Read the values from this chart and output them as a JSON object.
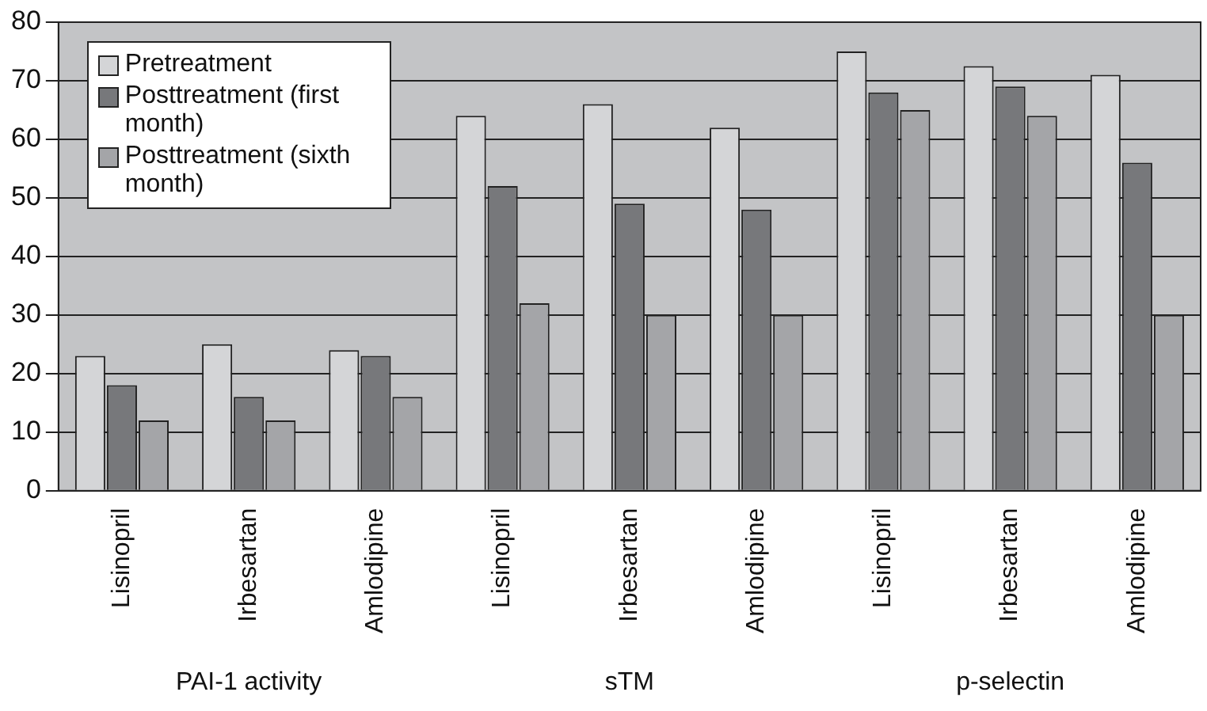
{
  "chart_data": {
    "type": "bar",
    "categories": [
      "Lisinopril",
      "Irbesartan",
      "Amlodipine",
      "Lisinopril",
      "Irbesartan",
      "Amlodipine",
      "Lisinopril",
      "Irbesartan",
      "Amlodipine"
    ],
    "series": [
      {
        "name": "Pretreatment",
        "color": "#d4d5d7",
        "values": [
          23,
          25,
          24,
          64,
          66,
          62,
          75,
          72.5,
          71
        ]
      },
      {
        "name": "Posttreatment (first month)",
        "color": "#77787b",
        "values": [
          18,
          16,
          23,
          52,
          49,
          48,
          68,
          69,
          56
        ]
      },
      {
        "name": "Posttreatment (sixth month)",
        "color": "#a4a5a8",
        "values": [
          12,
          12,
          16,
          32,
          30,
          30,
          65,
          64,
          30
        ]
      }
    ],
    "annotations": [
      "PAI-1 activity",
      "sTM",
      "p-selectin"
    ],
    "ylim": [
      0,
      80
    ],
    "yticks": [
      0,
      10,
      20,
      30,
      40,
      50,
      60,
      70,
      80
    ],
    "grid": "y",
    "legend": "top left"
  }
}
